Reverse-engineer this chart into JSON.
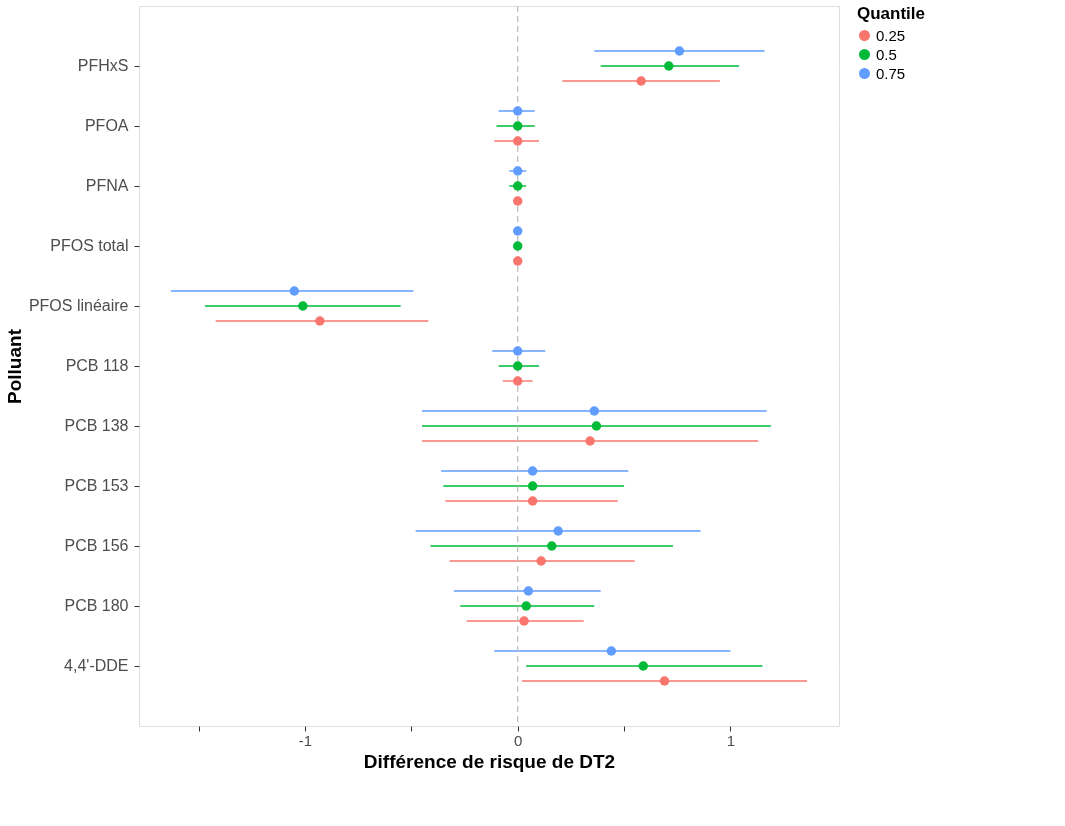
{
  "chart_data": {
    "type": "scatter",
    "orientation": "horizontal",
    "xlabel": "Différence de risque de DT2",
    "ylabel": "Polluant",
    "legend_title": "Quantile",
    "categories": [
      "PFHxS",
      "PFOA",
      "PFNA",
      "PFOS total",
      "PFOS linéaire",
      "PCB 118",
      "PCB 138",
      "PCB 153",
      "PCB 156",
      "PCB 180",
      "4,4'-DDE"
    ],
    "series": [
      {
        "name": "0.25",
        "color": "#f8766d",
        "values": [
          0.58,
          0,
          0,
          0,
          -0.93,
          0,
          0.34,
          0.07,
          0.11,
          0.03,
          0.69
        ],
        "errors": [
          [
            0.21,
            0.95
          ],
          [
            -0.11,
            0.1
          ],
          [
            -0.02,
            0.02
          ],
          [
            -0.01,
            0.01
          ],
          [
            -1.42,
            -0.42
          ],
          [
            -0.07,
            0.07
          ],
          [
            -0.45,
            1.13
          ],
          [
            -0.34,
            0.47
          ],
          [
            -0.32,
            0.55
          ],
          [
            -0.24,
            0.31
          ],
          [
            0.02,
            1.36
          ]
        ]
      },
      {
        "name": "0.5",
        "color": "#00ba38",
        "values": [
          0.71,
          0,
          0,
          0,
          -1.01,
          0,
          0.37,
          0.07,
          0.16,
          0.04,
          0.59
        ],
        "errors": [
          [
            0.39,
            1.04
          ],
          [
            -0.1,
            0.08
          ],
          [
            -0.04,
            0.04
          ],
          [
            -0.01,
            0.01
          ],
          [
            -1.47,
            -0.55
          ],
          [
            -0.09,
            0.1
          ],
          [
            -0.45,
            1.19
          ],
          [
            -0.35,
            0.5
          ],
          [
            -0.41,
            0.73
          ],
          [
            -0.27,
            0.36
          ],
          [
            0.04,
            1.15
          ]
        ]
      },
      {
        "name": "0.75",
        "color": "#619cff",
        "values": [
          0.76,
          0,
          0,
          0,
          -1.05,
          0,
          0.36,
          0.07,
          0.19,
          0.05,
          0.44
        ],
        "errors": [
          [
            0.36,
            1.16
          ],
          [
            -0.09,
            0.08
          ],
          [
            -0.04,
            0.04
          ],
          [
            -0.01,
            0.01
          ],
          [
            -1.63,
            -0.49
          ],
          [
            -0.12,
            0.13
          ],
          [
            -0.45,
            1.17
          ],
          [
            -0.36,
            0.52
          ],
          [
            -0.48,
            0.86
          ],
          [
            -0.3,
            0.39
          ],
          [
            -0.11,
            1.0
          ]
        ]
      }
    ],
    "xlim": [
      -1.78,
      1.51
    ],
    "xticks": [
      {
        "value": -1.5,
        "label": null
      },
      -1,
      {
        "value": -0.5,
        "label": null
      },
      0,
      {
        "value": 0.5,
        "label": null
      },
      1
    ],
    "ref_lines": [
      {
        "axis": "x",
        "value": 0,
        "color": "#bbbbbb",
        "line_style": "dashed"
      }
    ],
    "grid": true,
    "legend": "right",
    "marker": "circle"
  }
}
